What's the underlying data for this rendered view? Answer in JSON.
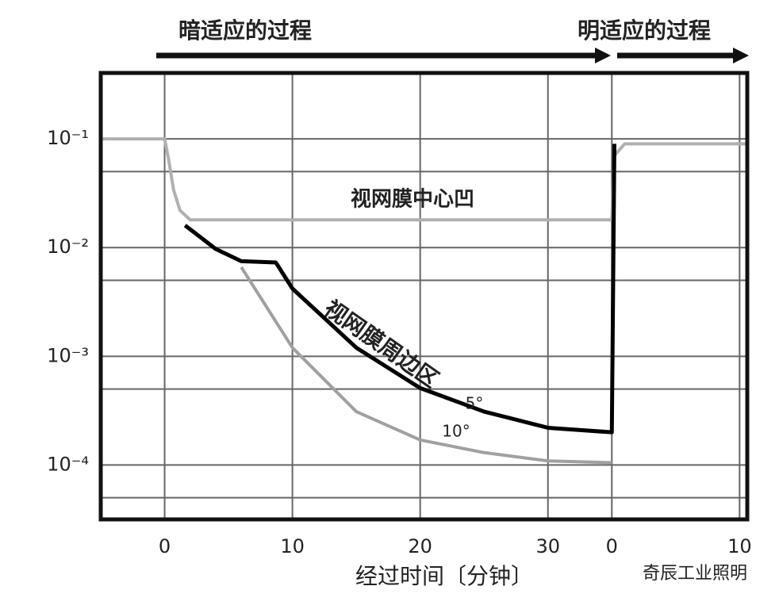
{
  "chart_data": {
    "type": "line",
    "annotations": {
      "dark": "暗适应的过程",
      "light": "明适应的过程",
      "periphery": "视网膜周边区",
      "watermark": "奇辰工业照明"
    },
    "x_label": "经过时间〔分钟〕",
    "log_y": true,
    "xlim": [
      -5,
      45.6
    ],
    "ylim": [
      3.16e-05,
      0.404
    ],
    "xticks": [
      0,
      10,
      20,
      30,
      {
        "value": 35,
        "label": "0"
      },
      {
        "value": 45,
        "label": "10"
      }
    ],
    "yticks": [
      {
        "value": 0.1,
        "label": "10⁻¹"
      },
      {
        "value": 0.01,
        "label": "10⁻²"
      },
      {
        "value": 0.001,
        "label": "10⁻³"
      },
      {
        "value": 0.0001,
        "label": "10⁻⁴"
      }
    ],
    "ygrid": [
      0.05,
      0.005,
      0.0005,
      5e-05
    ],
    "grid": true,
    "series": [
      {
        "name": "视网膜中心凹",
        "color": "#b0b0b0",
        "x": [
          -5,
          0,
          0.3,
          0.7,
          1.2,
          2,
          10,
          20,
          30,
          35,
          35.2,
          36,
          40,
          45.6
        ],
        "values": [
          0.1,
          0.1,
          0.066,
          0.034,
          0.022,
          0.018,
          0.018,
          0.018,
          0.018,
          0.018,
          0.07,
          0.09,
          0.09,
          0.09
        ]
      },
      {
        "name": "5°",
        "color": "#000000",
        "x": [
          1.6,
          4,
          6,
          8.7,
          10,
          15,
          20,
          25,
          30,
          35,
          35.2
        ],
        "values": [
          0.016,
          0.0097,
          0.0075,
          0.0073,
          0.0042,
          0.0012,
          0.00051,
          0.00031,
          0.00022,
          0.0002,
          0.09
        ]
      },
      {
        "name": "10°",
        "color": "#a0a0a0",
        "x": [
          6,
          10,
          15,
          20,
          25,
          30,
          35
        ],
        "values": [
          0.0066,
          0.0012,
          0.00031,
          0.00017,
          0.00013,
          0.000109,
          0.000105
        ]
      }
    ]
  }
}
